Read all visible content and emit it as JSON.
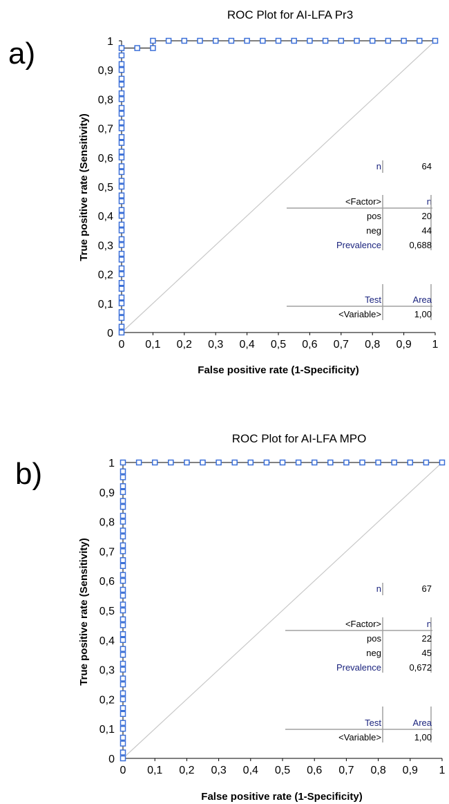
{
  "colors": {
    "roc": "#3a6fd8",
    "diagonal": "#c8c8c8",
    "stat_header": "#1a237e"
  },
  "chart_data": [
    {
      "type": "line",
      "panel_label": "a)",
      "title": "ROC Plot for AI-LFA Pr3",
      "xlabel": "False positive rate (1-Specificity)",
      "ylabel": "True positive rate (Sensitivity)",
      "xlim": [
        0,
        1
      ],
      "ylim": [
        0,
        1
      ],
      "x_ticks": [
        "0",
        "0,1",
        "0,2",
        "0,3",
        "0,4",
        "0,5",
        "0,6",
        "0,7",
        "0,8",
        "0,9",
        "1"
      ],
      "y_ticks": [
        "0",
        "0,1",
        "0,2",
        "0,3",
        "0,4",
        "0,5",
        "0,6",
        "0,7",
        "0,8",
        "0,9",
        "1"
      ],
      "roc_points": [
        [
          0,
          0
        ],
        [
          0,
          0.02
        ],
        [
          0,
          0.05
        ],
        [
          0,
          0.07
        ],
        [
          0,
          0.1
        ],
        [
          0,
          0.12
        ],
        [
          0,
          0.15
        ],
        [
          0,
          0.17
        ],
        [
          0,
          0.2
        ],
        [
          0,
          0.22
        ],
        [
          0,
          0.25
        ],
        [
          0,
          0.27
        ],
        [
          0,
          0.3
        ],
        [
          0,
          0.32
        ],
        [
          0,
          0.35
        ],
        [
          0,
          0.37
        ],
        [
          0,
          0.4
        ],
        [
          0,
          0.42
        ],
        [
          0,
          0.45
        ],
        [
          0,
          0.47
        ],
        [
          0,
          0.5
        ],
        [
          0,
          0.52
        ],
        [
          0,
          0.55
        ],
        [
          0,
          0.57
        ],
        [
          0,
          0.6
        ],
        [
          0,
          0.62
        ],
        [
          0,
          0.65
        ],
        [
          0,
          0.67
        ],
        [
          0,
          0.7
        ],
        [
          0,
          0.72
        ],
        [
          0,
          0.75
        ],
        [
          0,
          0.77
        ],
        [
          0,
          0.8
        ],
        [
          0,
          0.82
        ],
        [
          0,
          0.85
        ],
        [
          0,
          0.87
        ],
        [
          0,
          0.9
        ],
        [
          0,
          0.92
        ],
        [
          0,
          0.95
        ],
        [
          0,
          0.975
        ],
        [
          0.05,
          0.975
        ],
        [
          0.1,
          0.975
        ],
        [
          0.1,
          1
        ],
        [
          0.15,
          1
        ],
        [
          0.2,
          1
        ],
        [
          0.25,
          1
        ],
        [
          0.3,
          1
        ],
        [
          0.35,
          1
        ],
        [
          0.4,
          1
        ],
        [
          0.45,
          1
        ],
        [
          0.5,
          1
        ],
        [
          0.55,
          1
        ],
        [
          0.6,
          1
        ],
        [
          0.65,
          1
        ],
        [
          0.7,
          1
        ],
        [
          0.75,
          1
        ],
        [
          0.8,
          1
        ],
        [
          0.85,
          1
        ],
        [
          0.9,
          1
        ],
        [
          0.95,
          1
        ],
        [
          1,
          1
        ]
      ],
      "stats": {
        "n_label": "n",
        "n_value": "64",
        "factor_header": "<Factor>",
        "factor_n_header": "n",
        "rows": [
          {
            "label": "pos",
            "value": "20"
          },
          {
            "label": "neg",
            "value": "44"
          }
        ],
        "prevalence_label": "Prevalence",
        "prevalence_value": "0,688",
        "test_header": "Test",
        "area_header": "Area",
        "variable_label": "<Variable>",
        "area_value": "1,00"
      }
    },
    {
      "type": "line",
      "panel_label": "b)",
      "title": "ROC Plot for AI-LFA MPO",
      "xlabel": "False positive rate (1-Specificity)",
      "ylabel": "True positive rate (Sensitivity)",
      "xlim": [
        0,
        1
      ],
      "ylim": [
        0,
        1
      ],
      "x_ticks": [
        "0",
        "0,1",
        "0,2",
        "0,3",
        "0,4",
        "0,5",
        "0,6",
        "0,7",
        "0,8",
        "0,9",
        "1"
      ],
      "y_ticks": [
        "0",
        "0,1",
        "0,2",
        "0,3",
        "0,4",
        "0,5",
        "0,6",
        "0,7",
        "0,8",
        "0,9",
        "1"
      ],
      "roc_points": [
        [
          0,
          0
        ],
        [
          0,
          0.02
        ],
        [
          0,
          0.05
        ],
        [
          0,
          0.07
        ],
        [
          0,
          0.1
        ],
        [
          0,
          0.12
        ],
        [
          0,
          0.15
        ],
        [
          0,
          0.17
        ],
        [
          0,
          0.2
        ],
        [
          0,
          0.22
        ],
        [
          0,
          0.25
        ],
        [
          0,
          0.27
        ],
        [
          0,
          0.3
        ],
        [
          0,
          0.32
        ],
        [
          0,
          0.35
        ],
        [
          0,
          0.37
        ],
        [
          0,
          0.4
        ],
        [
          0,
          0.42
        ],
        [
          0,
          0.45
        ],
        [
          0,
          0.47
        ],
        [
          0,
          0.5
        ],
        [
          0,
          0.52
        ],
        [
          0,
          0.55
        ],
        [
          0,
          0.57
        ],
        [
          0,
          0.6
        ],
        [
          0,
          0.62
        ],
        [
          0,
          0.65
        ],
        [
          0,
          0.67
        ],
        [
          0,
          0.7
        ],
        [
          0,
          0.72
        ],
        [
          0,
          0.75
        ],
        [
          0,
          0.77
        ],
        [
          0,
          0.8
        ],
        [
          0,
          0.82
        ],
        [
          0,
          0.85
        ],
        [
          0,
          0.87
        ],
        [
          0,
          0.9
        ],
        [
          0,
          0.92
        ],
        [
          0,
          0.95
        ],
        [
          0,
          0.97
        ],
        [
          0,
          1
        ],
        [
          0.05,
          1
        ],
        [
          0.1,
          1
        ],
        [
          0.15,
          1
        ],
        [
          0.2,
          1
        ],
        [
          0.25,
          1
        ],
        [
          0.3,
          1
        ],
        [
          0.35,
          1
        ],
        [
          0.4,
          1
        ],
        [
          0.45,
          1
        ],
        [
          0.5,
          1
        ],
        [
          0.55,
          1
        ],
        [
          0.6,
          1
        ],
        [
          0.65,
          1
        ],
        [
          0.7,
          1
        ],
        [
          0.75,
          1
        ],
        [
          0.8,
          1
        ],
        [
          0.85,
          1
        ],
        [
          0.9,
          1
        ],
        [
          0.95,
          1
        ],
        [
          1,
          1
        ]
      ],
      "stats": {
        "n_label": "n",
        "n_value": "67",
        "factor_header": "<Factor>",
        "factor_n_header": "n",
        "rows": [
          {
            "label": "pos",
            "value": "22"
          },
          {
            "label": "neg",
            "value": "45"
          }
        ],
        "prevalence_label": "Prevalence",
        "prevalence_value": "0,672",
        "test_header": "Test",
        "area_header": "Area",
        "variable_label": "<Variable>",
        "area_value": "1,00"
      }
    }
  ]
}
